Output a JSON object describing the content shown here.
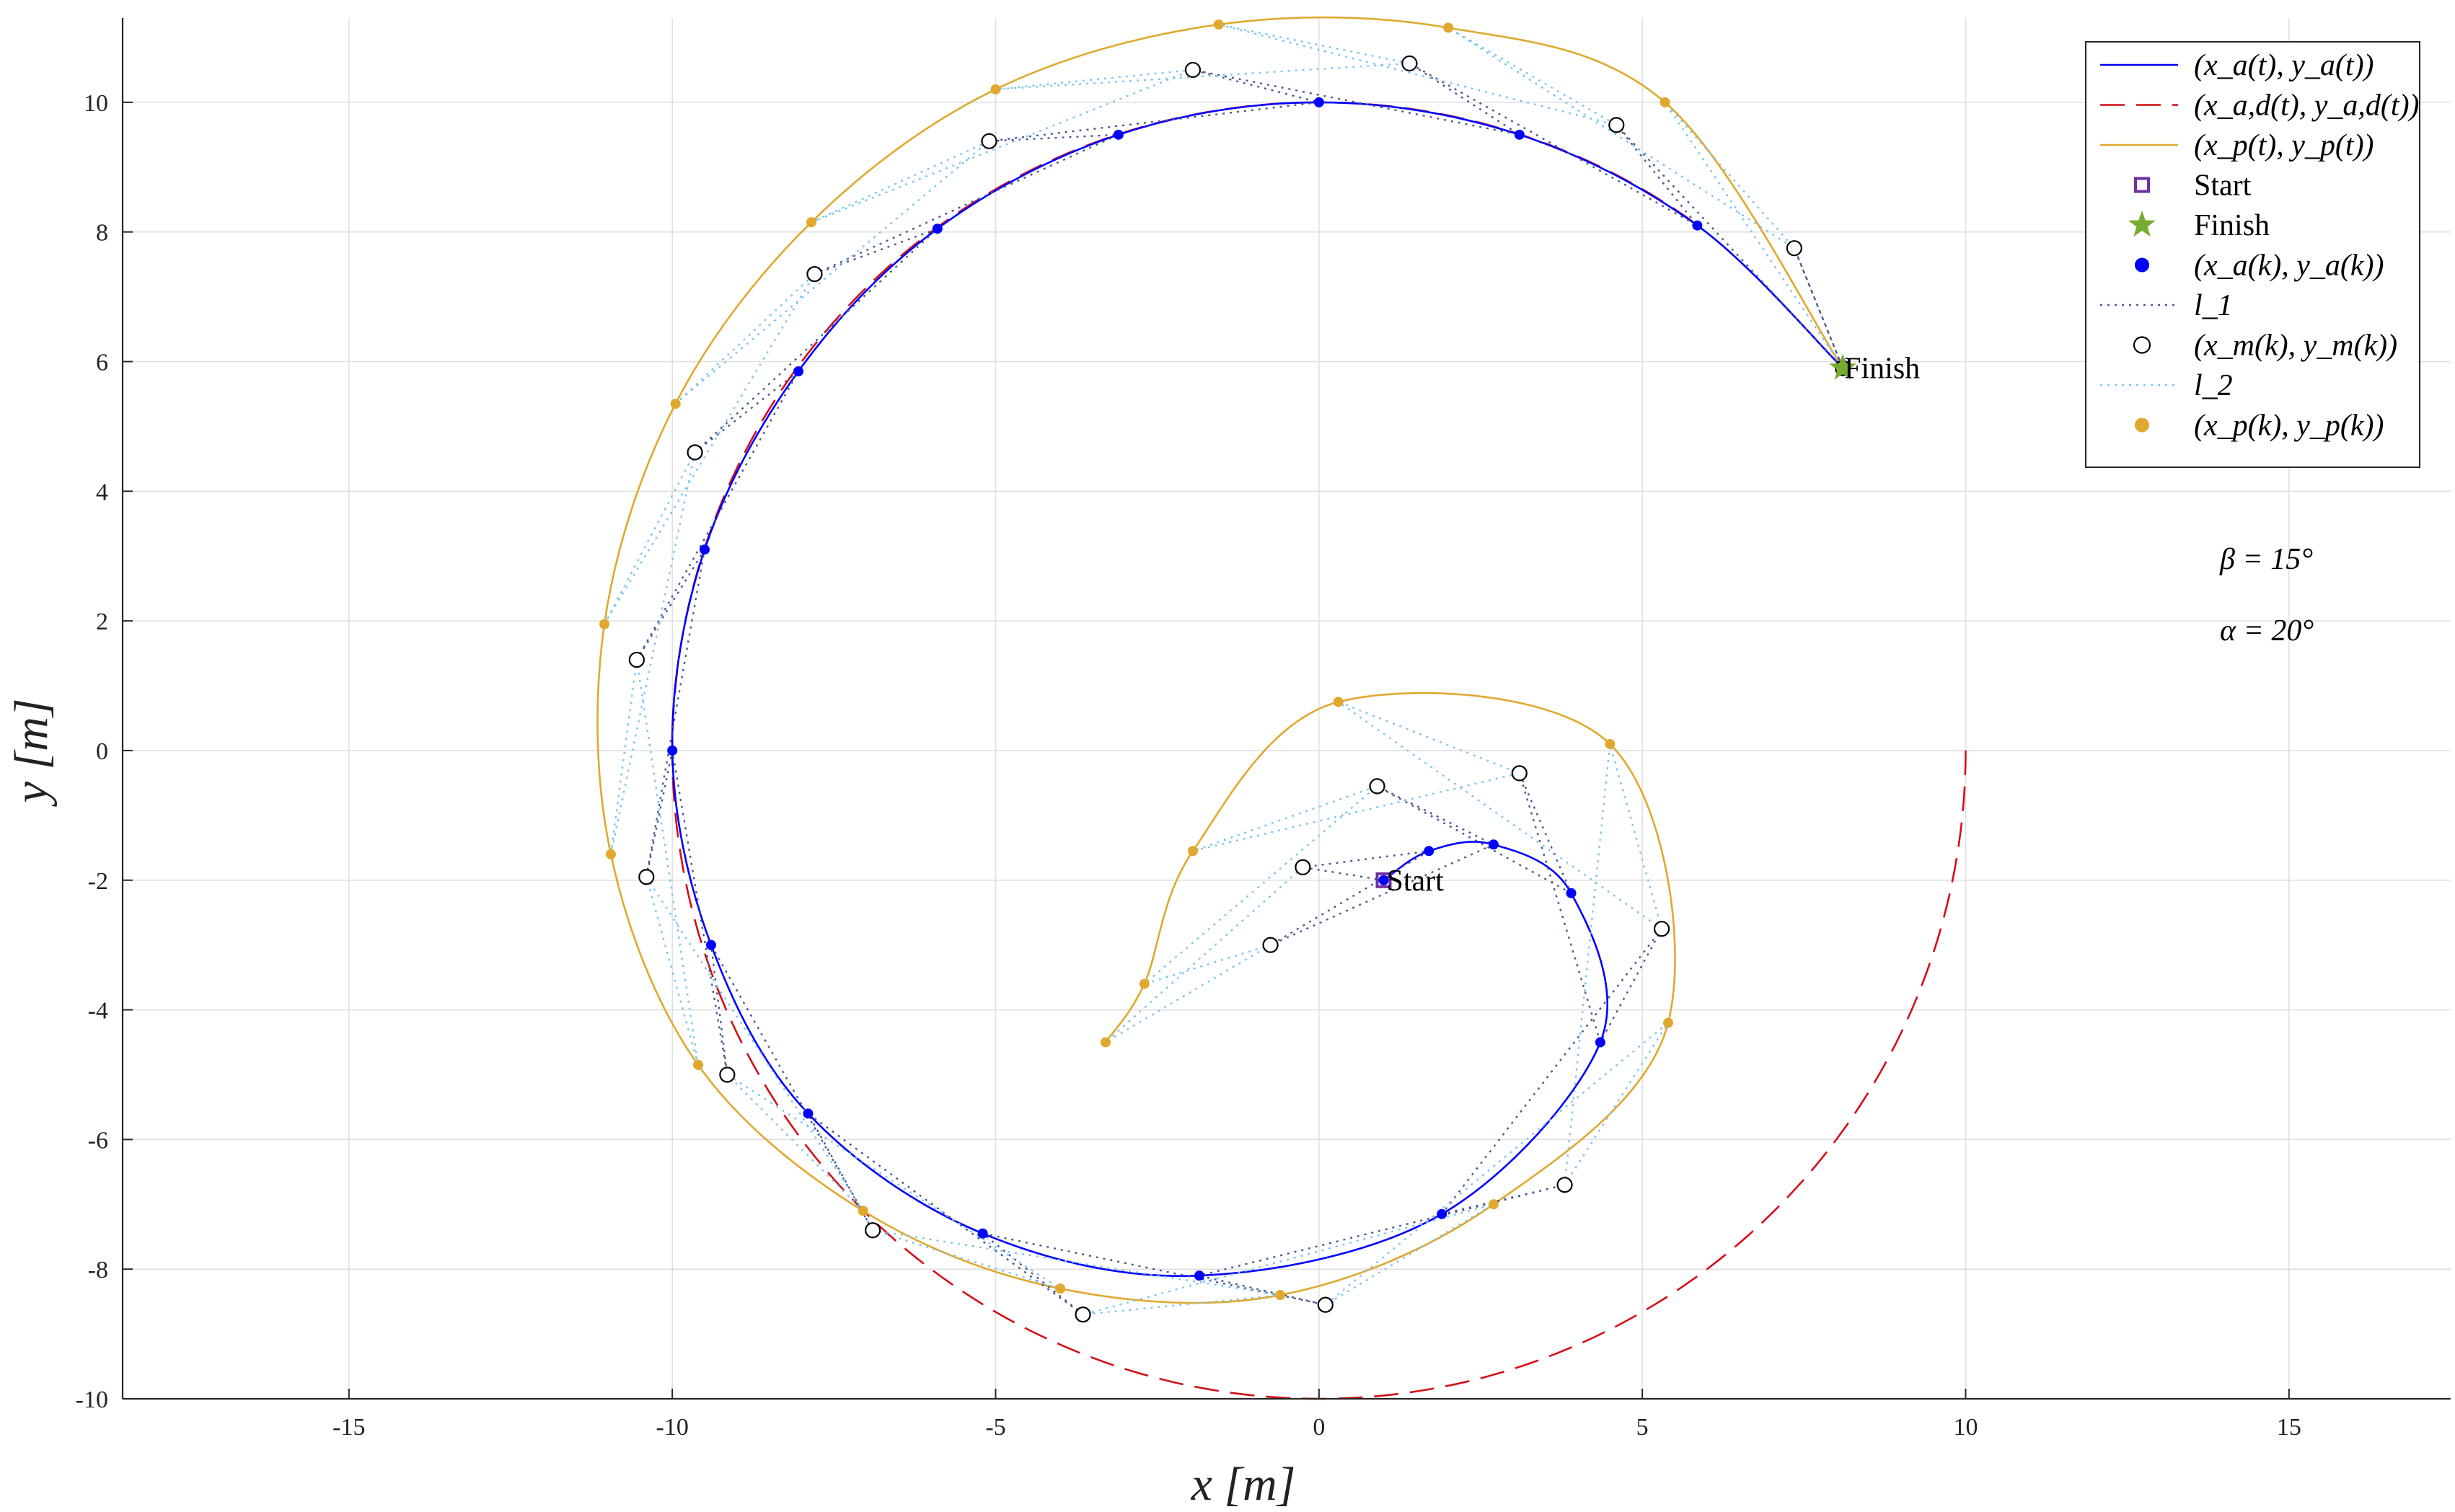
{
  "chart_data": {
    "type": "line",
    "xlabel": "x [m]",
    "ylabel": "y [m]",
    "xlim": [
      -18.5,
      17.5
    ],
    "ylim": [
      -10,
      11.3
    ],
    "grid": true,
    "xticks": [
      "-15",
      "-10",
      "-5",
      "0",
      "5",
      "10",
      "15"
    ],
    "yticks": [
      "-10",
      "-8",
      "-6",
      "-4",
      "-2",
      "0",
      "2",
      "4",
      "6",
      "8",
      "10"
    ],
    "legend_placement": "top-right",
    "legend": [
      "(x_a(t), y_a(t))",
      "(x_a,d(t), y_a,d(t))",
      "(x_p(t), y_p(t))",
      "Start",
      "Finish",
      "(x_a(k), y_a(k))",
      "l_1",
      "(x_m(k), y_m(k))",
      "l_2",
      "(x_p(k), y_p(k))"
    ],
    "annotations": {
      "start_label": "Start",
      "finish_label": "Finish",
      "beta": "β = 15°",
      "alpha": "α = 20°"
    },
    "colors": {
      "actual": "#0000ff",
      "desired": "#d40f17",
      "pursuer": "#e0a82e",
      "l1": "#4a5a8a",
      "l2": "#7cc6ee",
      "start_marker": "#7030a0",
      "finish_marker": "#77ac30"
    },
    "start": [
      1,
      -2
    ],
    "finish": [
      8.1,
      5.9
    ],
    "series": [
      {
        "name": "(x_a(k), y_a(k))",
        "points": [
          [
            1.0,
            -2.0
          ],
          [
            1.7,
            -1.55
          ],
          [
            2.7,
            -1.45
          ],
          [
            3.9,
            -2.2
          ],
          [
            4.35,
            -4.5
          ],
          [
            1.9,
            -7.15
          ],
          [
            -1.85,
            -8.1
          ],
          [
            -5.2,
            -7.45
          ],
          [
            -7.9,
            -5.6
          ],
          [
            -9.4,
            -3.0
          ],
          [
            -10.0,
            0.0
          ],
          [
            -9.5,
            3.1
          ],
          [
            -8.05,
            5.85
          ],
          [
            -5.9,
            8.05
          ],
          [
            -3.1,
            9.5
          ],
          [
            0.0,
            10.0
          ],
          [
            3.1,
            9.5
          ],
          [
            5.85,
            8.1
          ],
          [
            8.1,
            5.9
          ]
        ]
      },
      {
        "name": "(x_m(k), y_m(k))",
        "points": [
          [
            -0.25,
            -1.8
          ],
          [
            -0.75,
            -3.0
          ],
          [
            0.9,
            -0.55
          ],
          [
            3.1,
            -0.35
          ],
          [
            5.3,
            -2.75
          ],
          [
            3.8,
            -6.7
          ],
          [
            0.1,
            -8.55
          ],
          [
            -3.65,
            -8.7
          ],
          [
            -6.9,
            -7.4
          ],
          [
            -9.15,
            -5.0
          ],
          [
            -10.4,
            -1.95
          ],
          [
            -10.55,
            1.4
          ],
          [
            -9.65,
            4.6
          ],
          [
            -7.8,
            7.35
          ],
          [
            -5.1,
            9.4
          ],
          [
            -1.95,
            10.5
          ],
          [
            1.4,
            10.6
          ],
          [
            4.6,
            9.65
          ],
          [
            7.35,
            7.75
          ],
          [
            8.1,
            5.9
          ]
        ]
      },
      {
        "name": "(x_p(k), y_p(k))",
        "points": [
          [
            -3.3,
            -4.5
          ],
          [
            -2.7,
            -3.6
          ],
          [
            -1.95,
            -1.55
          ],
          [
            0.3,
            0.75
          ],
          [
            4.5,
            0.1
          ],
          [
            5.4,
            -4.2
          ],
          [
            2.7,
            -7.0
          ],
          [
            -0.6,
            -8.4
          ],
          [
            -4.0,
            -8.3
          ],
          [
            -7.05,
            -7.1
          ],
          [
            -9.6,
            -4.85
          ],
          [
            -10.95,
            -1.6
          ],
          [
            -11.05,
            1.95
          ],
          [
            -9.95,
            5.35
          ],
          [
            -7.85,
            8.15
          ],
          [
            -5.0,
            10.2
          ],
          [
            -1.55,
            11.2
          ],
          [
            2.0,
            11.15
          ],
          [
            5.35,
            10.0
          ],
          [
            8.1,
            5.9
          ]
        ]
      }
    ]
  }
}
